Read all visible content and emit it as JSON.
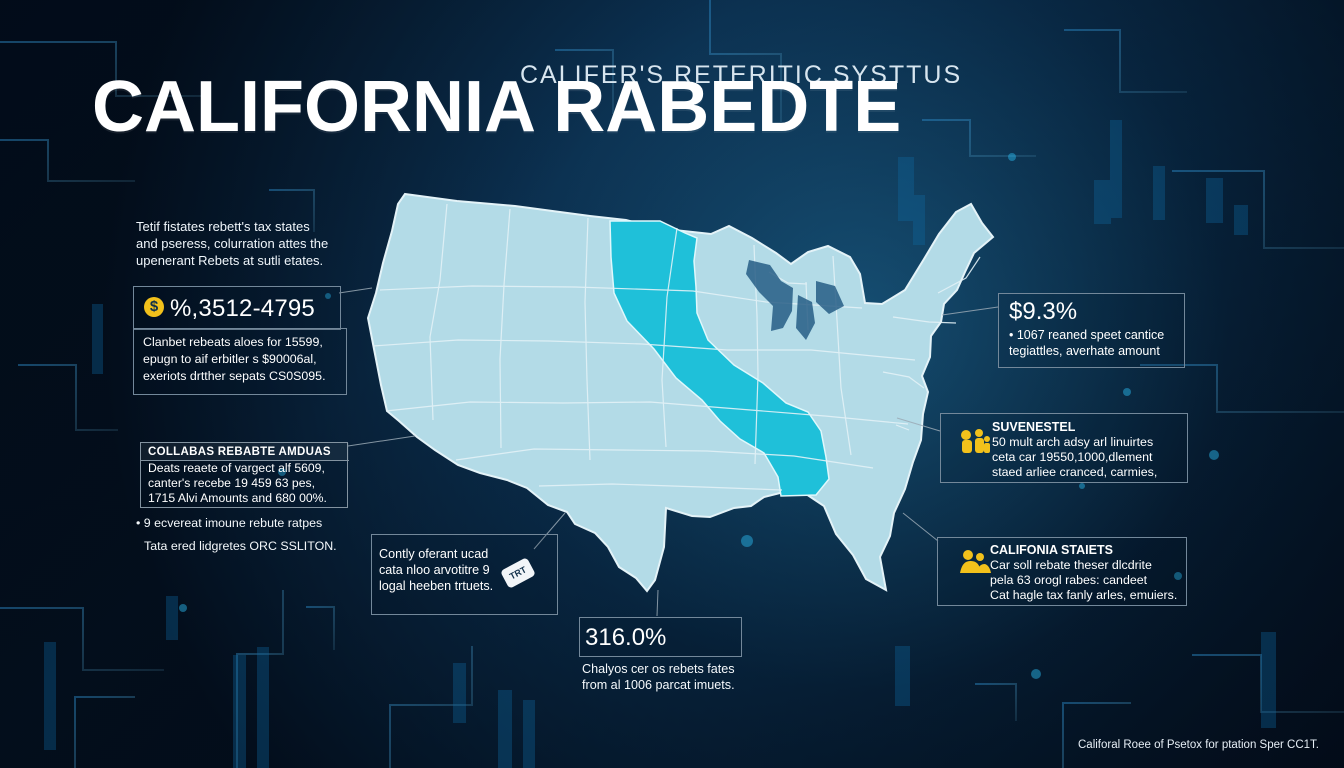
{
  "header": {
    "subtitle": "CALIFER'S RETERITIC SYSTTUS",
    "title": "CALIFORNIA RABEDTE"
  },
  "intro": {
    "lines": [
      "Tetif fistates rebett's tax states",
      "and pseress, colurration attes the",
      "upenerant Rebets at sutli etates."
    ]
  },
  "left_value": {
    "icon_symbol": "$",
    "value": "%,3512-4795",
    "lines": [
      "Clanbet rebeats aloes for 15599,",
      "epugn to aif erbitler s $90006al,",
      "exeriots drtther sepats CS0S095."
    ]
  },
  "collabas": {
    "title": "COLLABAS REBABTE AMDUAS",
    "lines": [
      "Deats reaete of vargect alf 5609,",
      "canter's recebe 19 459 63 pes,",
      "1715 Alvi Amounts and 680 00%."
    ]
  },
  "bottom_left": {
    "bullet": "• 9 ecvereat imoune rebute ratpes",
    "footnote": "Tata ered lidgretes ORC SSLITON."
  },
  "center_small": {
    "lines": [
      "Contly oferant ucad",
      "cata nloo arvotitre 9",
      "logal heeben trtuets."
    ],
    "icon_text": "TRT"
  },
  "bottom_center": {
    "value": "316.0%",
    "lines": [
      "Chalyos cer os rebets fates",
      "from al 1006 parcat imuets."
    ]
  },
  "percent_panel": {
    "value": "$9.3%",
    "lines": [
      "• 1067 reaned speet cantice",
      "tegiattles, averhate amount"
    ]
  },
  "suvenestel": {
    "heading": "SUVENESTEL",
    "lines": [
      "50 mult arch adsy arl linuirtes",
      "ceta car 19550,1000,dlement",
      "staed arliee cranced, carmies,"
    ]
  },
  "california_states": {
    "heading": "CALIFONIA STAIETS",
    "lines": [
      "Car soll rebate theser dlcdrite",
      "pela 63 orogl rabes: candeet",
      "Cat hagle tax fanly arles, emuiers."
    ]
  },
  "source": "Califoral Roee of Psetox for ptation Sper CC1T.",
  "colors": {
    "background": "#06182b",
    "map_fill": "#b3dbe7",
    "highlight_fill": "#1fc0d9",
    "icon_yellow": "#f2c11b",
    "box_border": "#73889a"
  },
  "icons": {
    "coin": "dollar-coin-icon",
    "ticket": "ticket-icon",
    "family": "family-icon"
  }
}
